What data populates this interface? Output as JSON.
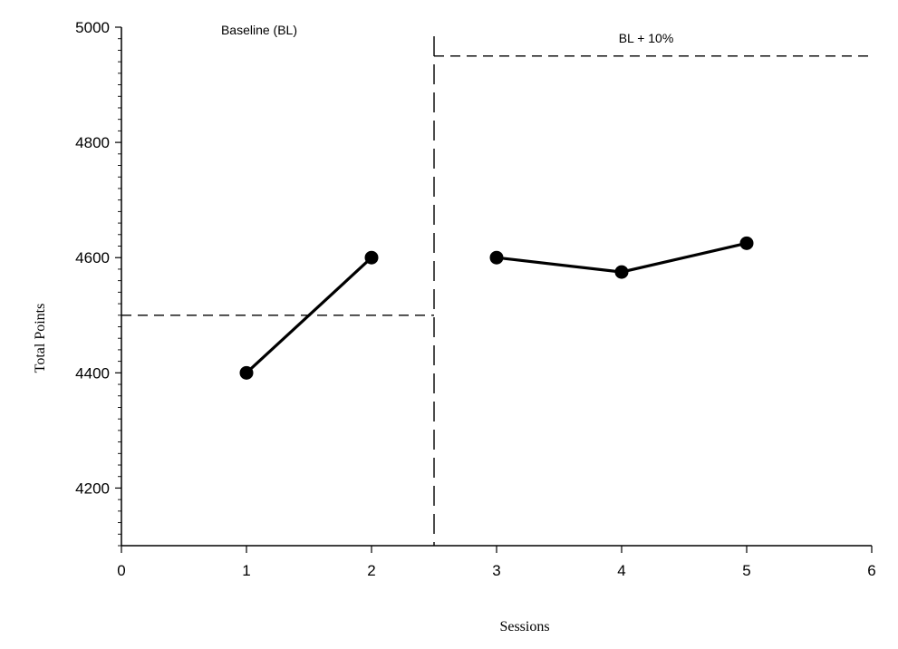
{
  "chart_data": {
    "type": "line",
    "xlabel": "Sessions",
    "ylabel": "Total Points",
    "xlim": [
      0,
      6
    ],
    "ylim": [
      4100,
      5000
    ],
    "x_ticks": [
      0,
      1,
      2,
      3,
      4,
      5,
      6
    ],
    "y_ticks": [
      4200,
      4400,
      4600,
      4800,
      5000
    ],
    "grid": false,
    "phases": [
      {
        "label": "Baseline (BL)",
        "x": [
          1,
          2
        ],
        "y": [
          4400,
          4600
        ],
        "criterion": 4500
      },
      {
        "label": "BL + 10%",
        "x": [
          3,
          4,
          5
        ],
        "y": [
          4600,
          4575,
          4625
        ],
        "criterion": 4950
      }
    ],
    "phase_change_x": 2.5,
    "colors": {
      "line": "#000000",
      "marker": "#000000"
    }
  }
}
